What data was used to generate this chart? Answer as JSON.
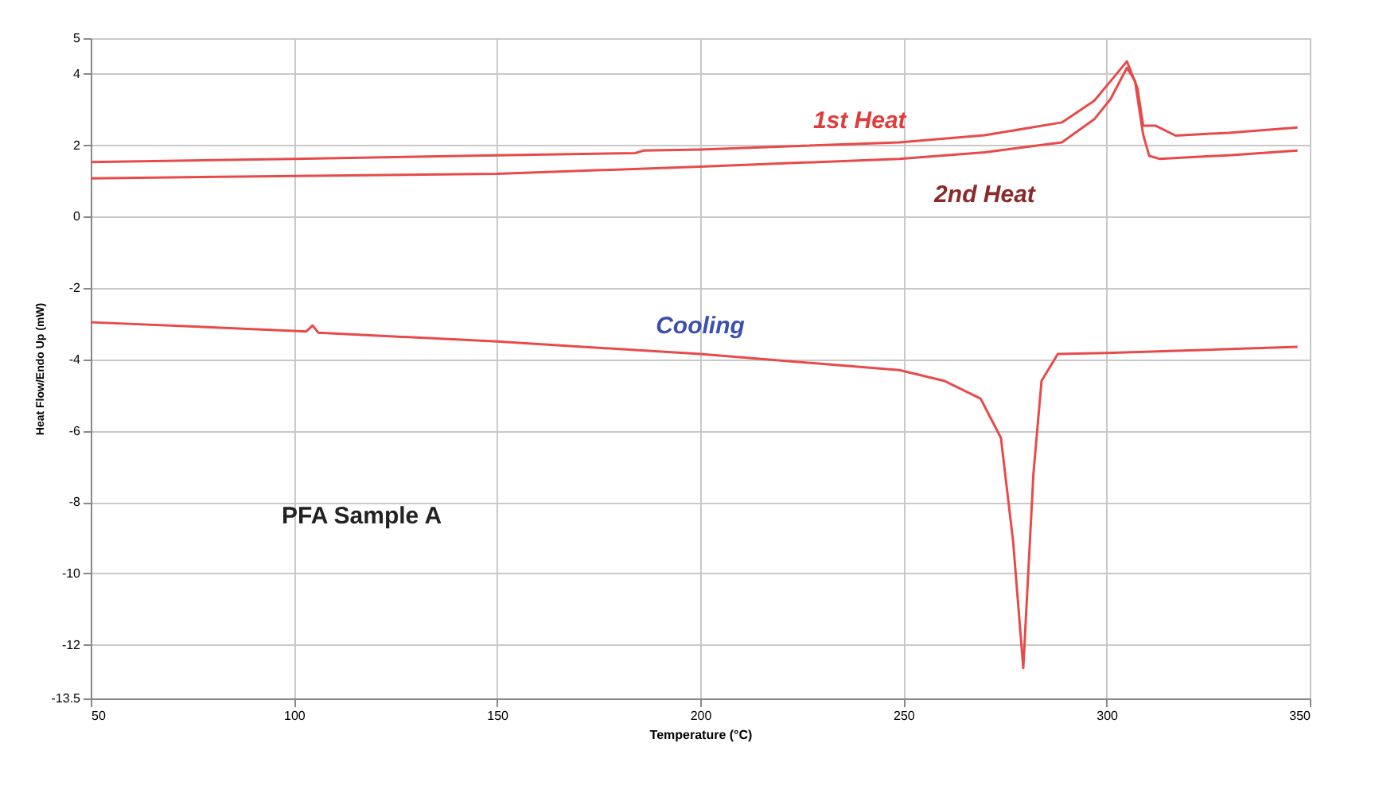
{
  "chart_data": {
    "type": "line",
    "xlabel": "Temperature (°C)",
    "ylabel": "Heat Flow/Endo Up (mW)",
    "xlim": [
      50,
      350
    ],
    "xticks": [
      50,
      100,
      150,
      200,
      250,
      300,
      350
    ],
    "ylim": [
      -13.5,
      5
    ],
    "yticks": [
      5,
      4,
      2,
      0,
      -2,
      -4,
      -6,
      -8,
      -10,
      -12,
      -13.5
    ],
    "grid": true,
    "legend": false,
    "line_style": "solid",
    "marker": "none",
    "series": [
      {
        "name": "1st Heat",
        "color": "#e84a4a",
        "x": [
          50,
          100,
          150,
          184,
          186,
          200,
          249,
          270,
          289,
          297,
          301,
          305,
          307.6,
          309,
          312,
          317,
          330,
          347
        ],
        "values": [
          1.53,
          1.62,
          1.72,
          1.78,
          1.85,
          1.88,
          2.08,
          2.28,
          2.64,
          3.25,
          3.8,
          4.35,
          3.6,
          2.55,
          2.55,
          2.27,
          2.35,
          2.5
        ]
      },
      {
        "name": "2nd Heat",
        "color": "#e84a4a",
        "x": [
          50,
          100,
          150,
          200,
          249,
          270,
          289,
          297,
          301,
          305,
          307,
          309,
          310.5,
          313,
          330,
          347
        ],
        "values": [
          1.07,
          1.14,
          1.2,
          1.4,
          1.62,
          1.8,
          2.08,
          2.73,
          3.3,
          4.17,
          3.8,
          2.3,
          1.7,
          1.62,
          1.72,
          1.85
        ]
      },
      {
        "name": "Cooling",
        "color": "#e84a4a",
        "x": [
          50,
          100,
          103,
          104.6,
          106,
          150,
          200,
          249,
          260,
          269,
          274,
          277,
          279.5,
          282,
          284,
          288,
          300,
          347
        ],
        "values": [
          -2.96,
          -3.2,
          -3.22,
          -3.05,
          -3.25,
          -3.5,
          -3.85,
          -4.3,
          -4.6,
          -5.1,
          -6.2,
          -9.1,
          -12.65,
          -7.2,
          -4.6,
          -3.85,
          -3.82,
          -3.65
        ]
      }
    ],
    "annotations": [
      "PFA Sample A"
    ]
  }
}
